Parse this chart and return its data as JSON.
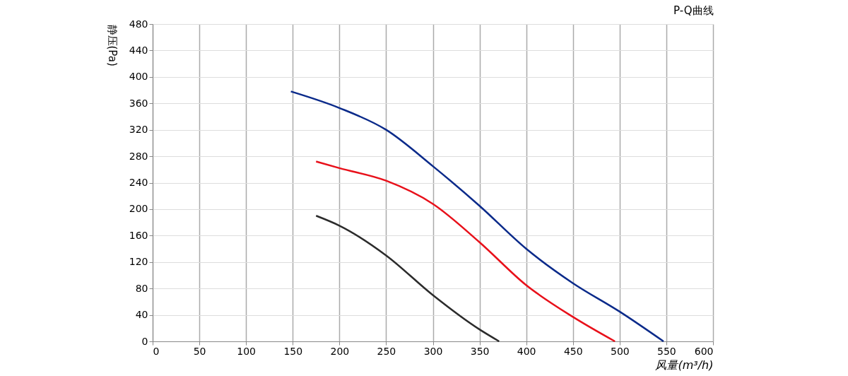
{
  "chart_data": {
    "type": "line",
    "title": "P-Q曲线",
    "xlabel": "风量(m³/h)",
    "ylabel": "静压(Pa)",
    "xlim": [
      0,
      600
    ],
    "xticks": [
      0,
      50,
      100,
      150,
      200,
      250,
      300,
      350,
      400,
      450,
      500,
      550,
      600
    ],
    "ylim": [
      0,
      480
    ],
    "yticks": [
      0,
      40,
      80,
      120,
      160,
      200,
      240,
      280,
      320,
      360,
      400,
      440,
      480
    ],
    "grid": true,
    "legend": false,
    "marker": "none",
    "line_style": "solid",
    "series": [
      {
        "color": "#0a2a8a",
        "x": [
          148,
          200,
          250,
          300,
          350,
          400,
          450,
          500,
          547
        ],
        "values": [
          378,
          353,
          320,
          265,
          205,
          140,
          88,
          45,
          0
        ]
      },
      {
        "color": "#e8101a",
        "x": [
          175,
          200,
          250,
          300,
          350,
          400,
          450,
          495
        ],
        "values": [
          272,
          262,
          243,
          208,
          150,
          85,
          37,
          0
        ]
      },
      {
        "color": "#2b2b2b",
        "x": [
          175,
          200,
          250,
          300,
          350,
          371
        ],
        "values": [
          190,
          175,
          130,
          70,
          18,
          0
        ]
      }
    ]
  }
}
